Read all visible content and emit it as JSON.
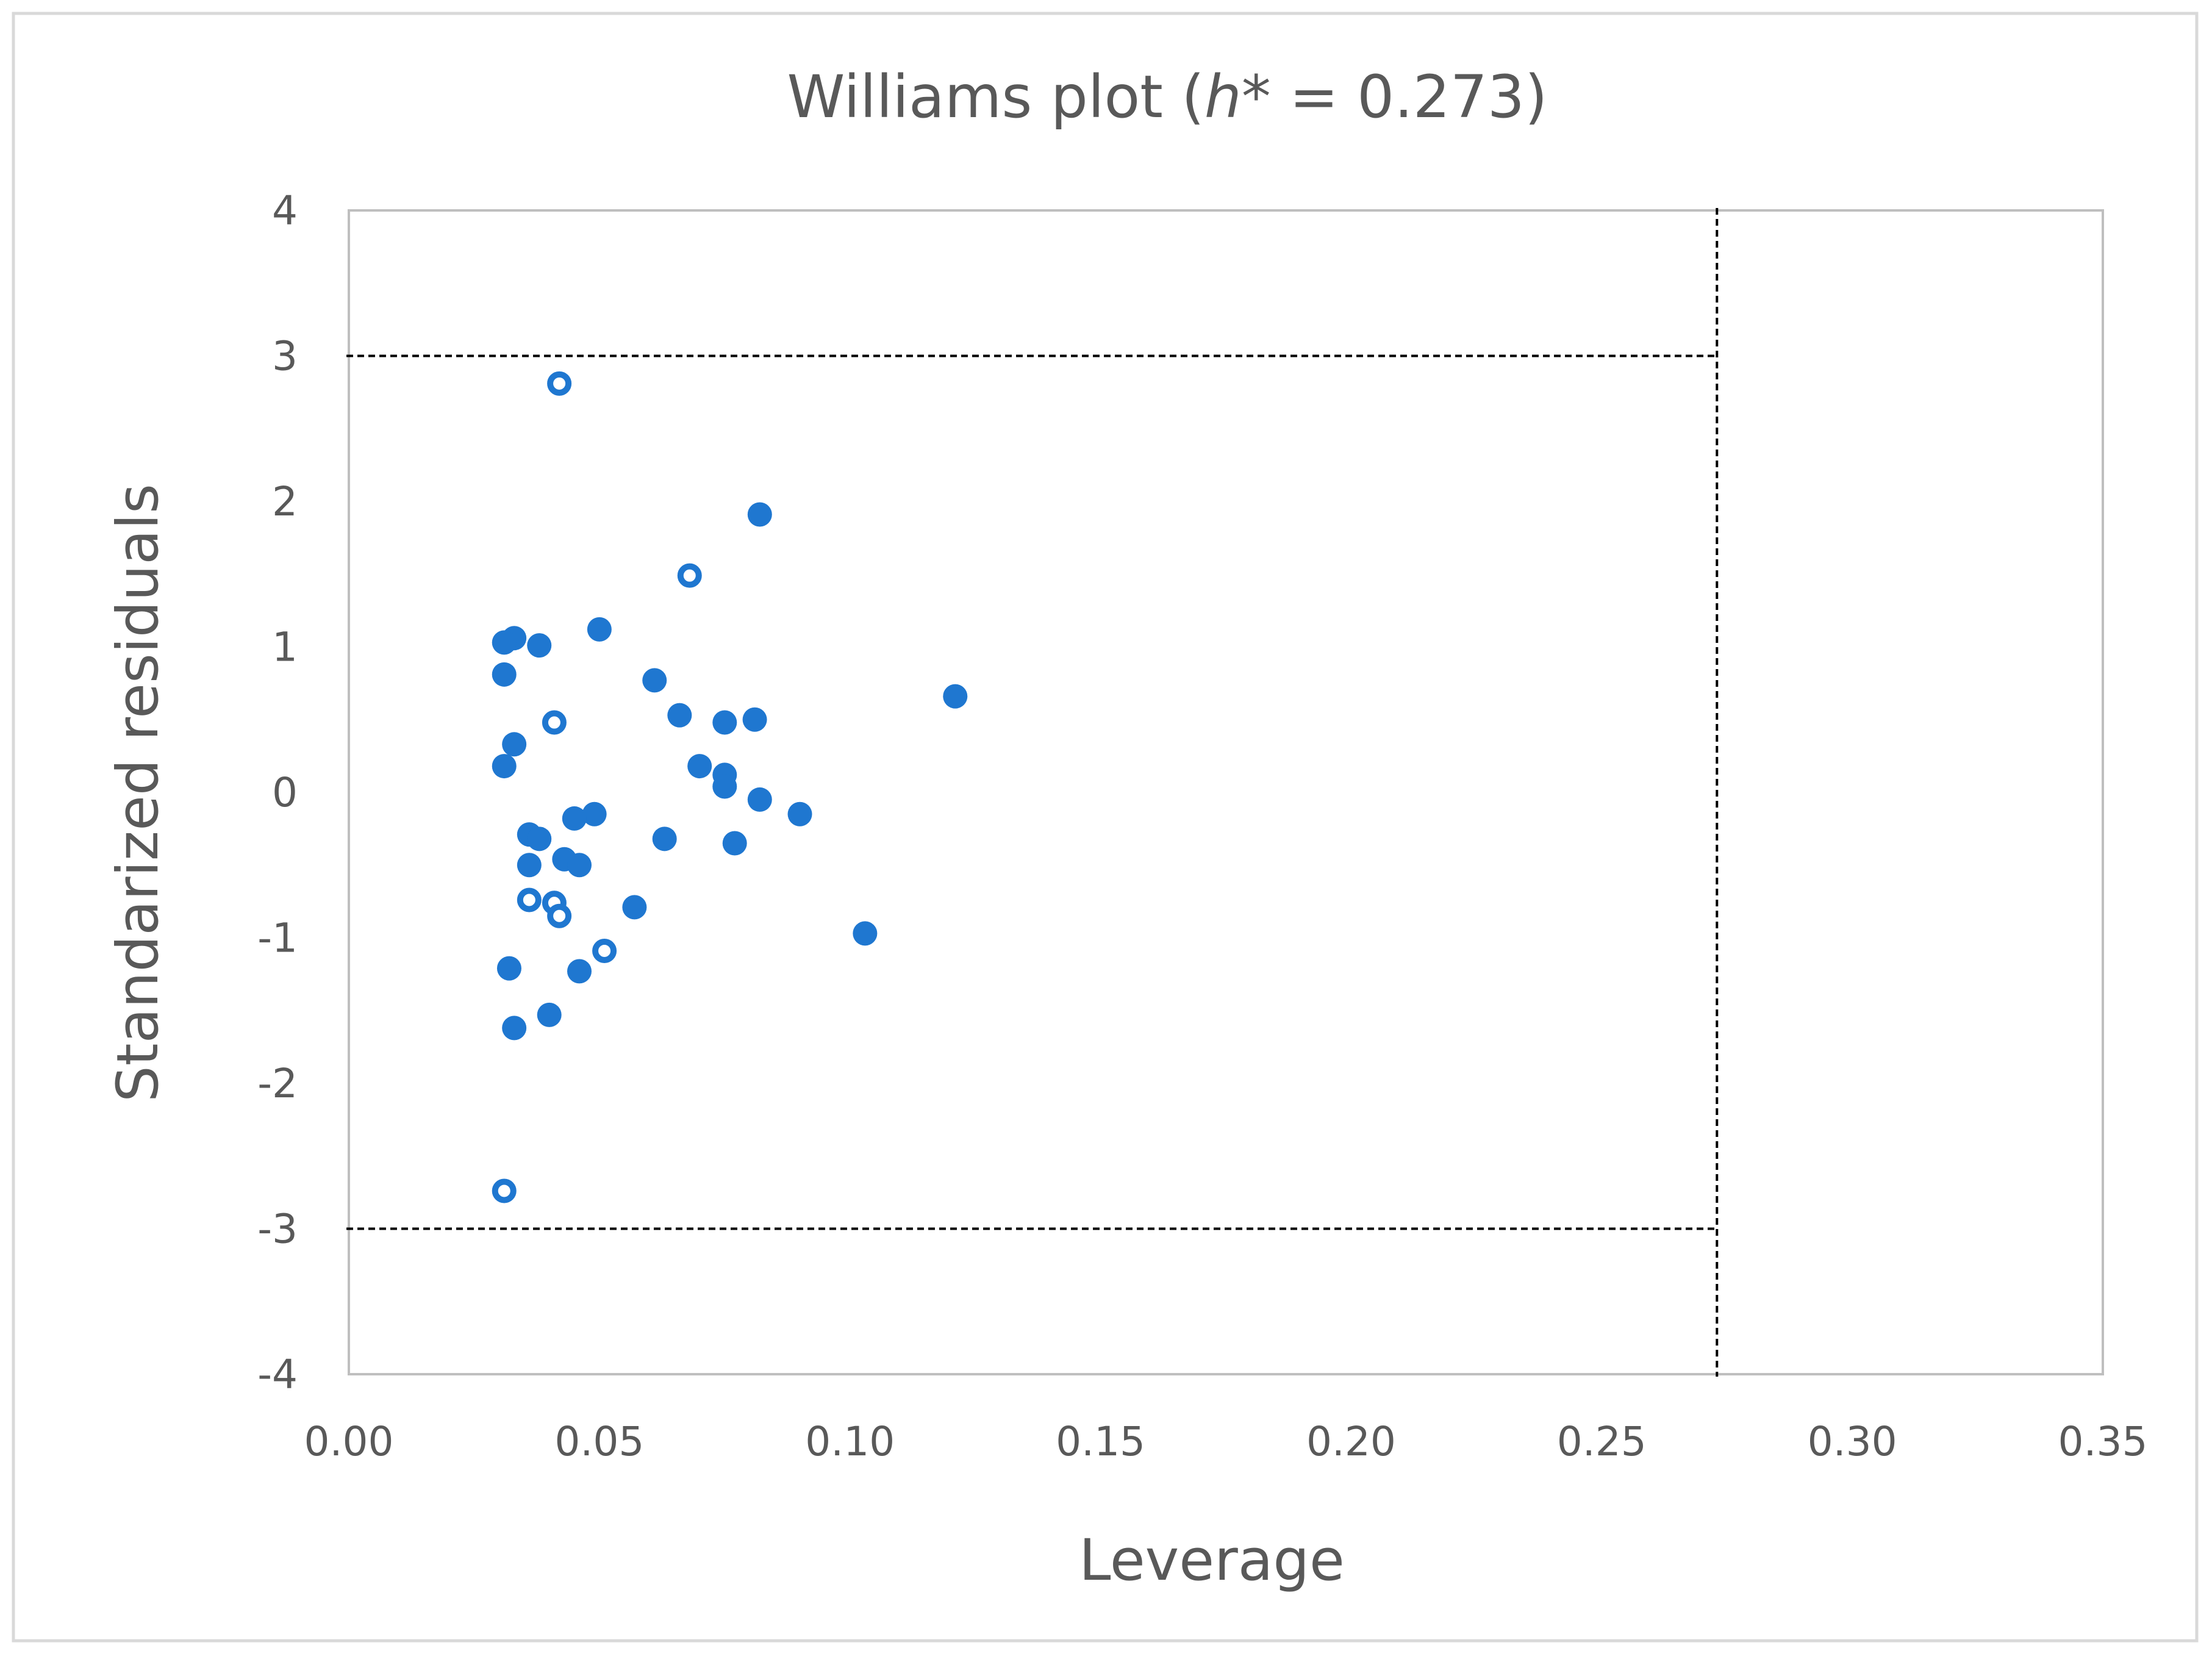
{
  "chart_data": {
    "type": "scatter",
    "title_prefix": "Williams plot (",
    "title_italic": "h",
    "title_suffix": "* = 0.273)",
    "xlabel": "Leverage",
    "ylabel": "Standarized residuals",
    "xlim": [
      0,
      0.35
    ],
    "ylim": [
      -4,
      4
    ],
    "x_ticks": [
      0,
      0.05,
      0.1,
      0.15,
      0.2,
      0.25,
      0.3,
      0.35
    ],
    "x_tick_labels": [
      "0.00",
      "0.05",
      "0.10",
      "0.15",
      "0.20",
      "0.25",
      "0.30",
      "0.35"
    ],
    "y_ticks": [
      4,
      3,
      2,
      1,
      0,
      -1,
      -2,
      -3,
      -4
    ],
    "y_tick_labels": [
      "4",
      "3",
      "2",
      "1",
      "0",
      "-1",
      "-2",
      "-3",
      "-4"
    ],
    "grid": false,
    "legend": "none",
    "reference_lines": {
      "horizontal": [
        3,
        -3
      ],
      "vertical": [
        0.273
      ],
      "style": "dashed"
    },
    "colors": {
      "marker": "#1F77D0",
      "reference_line": "#000000",
      "axis_box": "#BFBFBF",
      "frame": "#D9D9D9",
      "text": "#595959"
    },
    "series": [
      {
        "marker": "filled-circle",
        "points": [
          [
            0.082,
            1.91
          ],
          [
            0.05,
            1.12
          ],
          [
            0.033,
            1.06
          ],
          [
            0.031,
            1.03
          ],
          [
            0.038,
            1.01
          ],
          [
            0.031,
            0.81
          ],
          [
            0.061,
            0.77
          ],
          [
            0.121,
            0.66
          ],
          [
            0.066,
            0.53
          ],
          [
            0.075,
            0.48
          ],
          [
            0.081,
            0.5
          ],
          [
            0.033,
            0.33
          ],
          [
            0.031,
            0.18
          ],
          [
            0.07,
            0.18
          ],
          [
            0.075,
            0.12
          ],
          [
            0.075,
            0.04
          ],
          [
            0.082,
            -0.05
          ],
          [
            0.09,
            -0.15
          ],
          [
            0.049,
            -0.15
          ],
          [
            0.045,
            -0.18
          ],
          [
            0.036,
            -0.29
          ],
          [
            0.038,
            -0.32
          ],
          [
            0.063,
            -0.32
          ],
          [
            0.077,
            -0.35
          ],
          [
            0.043,
            -0.46
          ],
          [
            0.036,
            -0.5
          ],
          [
            0.046,
            -0.5
          ],
          [
            0.057,
            -0.79
          ],
          [
            0.103,
            -0.97
          ],
          [
            0.032,
            -1.21
          ],
          [
            0.046,
            -1.23
          ],
          [
            0.04,
            -1.53
          ],
          [
            0.033,
            -1.62
          ]
        ]
      },
      {
        "marker": "open-circle",
        "points": [
          [
            0.042,
            2.81
          ],
          [
            0.068,
            1.49
          ],
          [
            0.041,
            0.48
          ],
          [
            0.036,
            -0.74
          ],
          [
            0.041,
            -0.76
          ],
          [
            0.042,
            -0.85
          ],
          [
            0.051,
            -1.09
          ],
          [
            0.031,
            -2.74
          ]
        ]
      }
    ]
  }
}
